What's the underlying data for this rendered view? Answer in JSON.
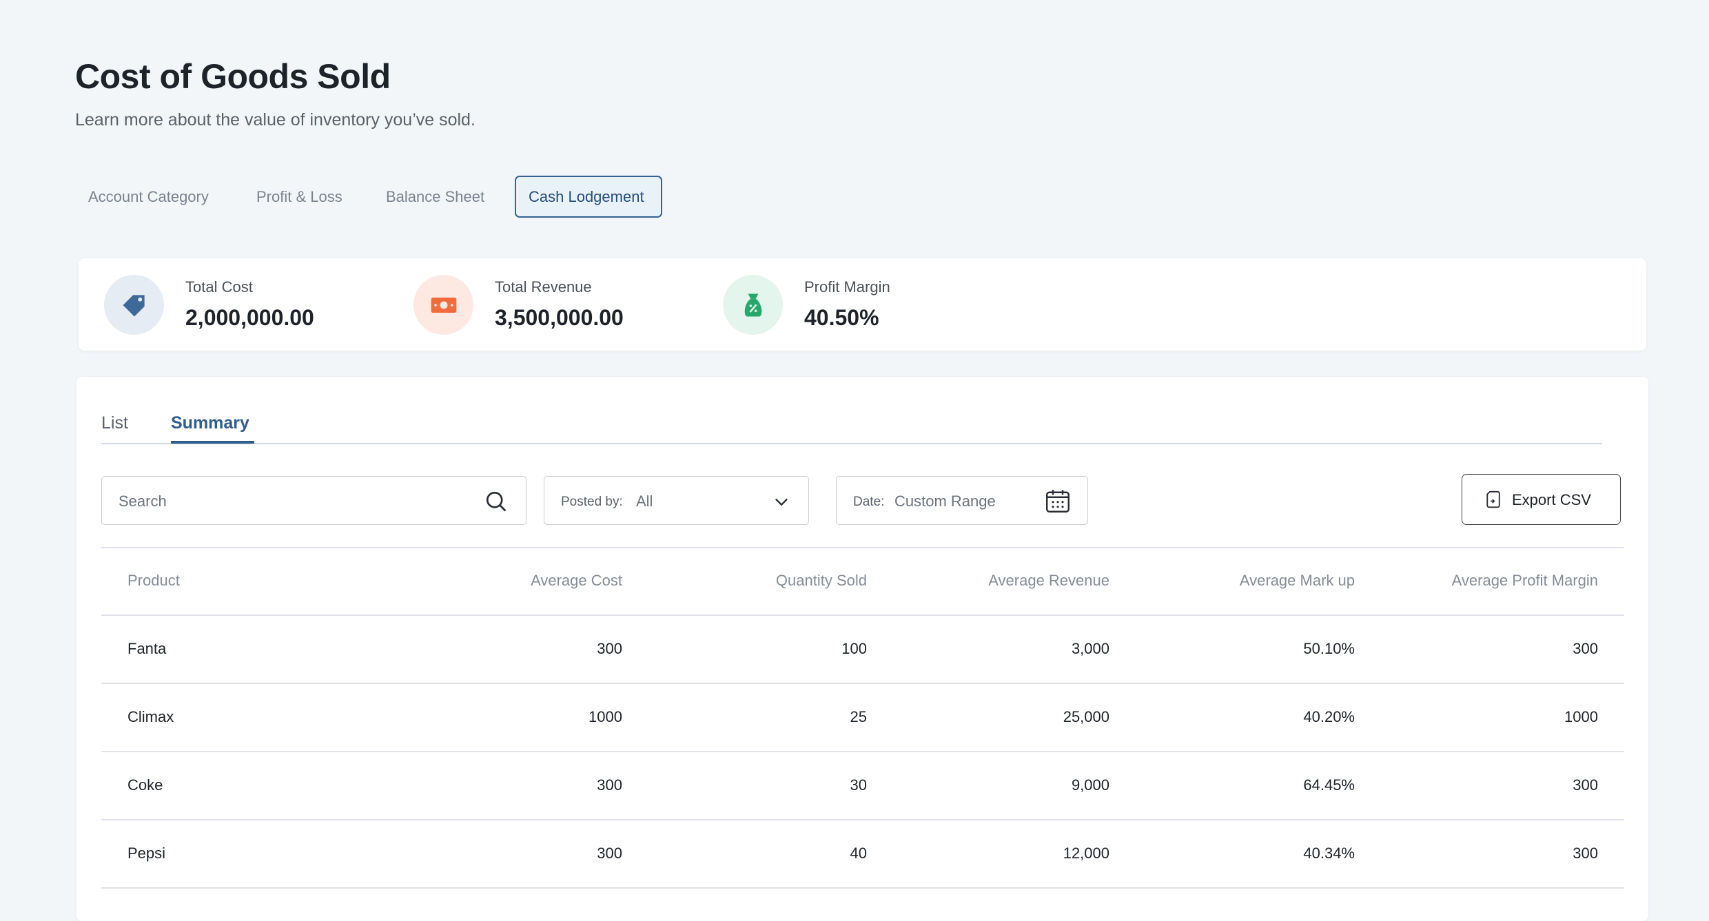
{
  "header": {
    "title": "Cost of Goods Sold",
    "subtitle": "Learn more about the value of inventory you’ve sold."
  },
  "nav_tabs": [
    "Account Category",
    "Profit & Loss",
    "Balance Sheet",
    "Cash Lodgement"
  ],
  "stats": [
    {
      "label": "Total Cost",
      "value": "2,000,000.00"
    },
    {
      "label": "Total Revenue",
      "value": "3,500,000.00"
    },
    {
      "label": "Profit Margin",
      "value": "40.50%"
    }
  ],
  "view_tabs": [
    "List",
    "Summary"
  ],
  "filters": {
    "search_placeholder": "Search",
    "posted_by_label": "Posted by:",
    "posted_by_value": "All",
    "date_label": "Date:",
    "date_value": "Custom Range",
    "export": "Export CSV"
  },
  "table": {
    "columns": [
      "Product",
      "Average Cost",
      "Quantity Sold",
      "Average Revenue",
      "Average Mark up",
      "Average Profit Margin"
    ],
    "rows": [
      [
        "Fanta",
        "300",
        "100",
        "3,000",
        "50.10%",
        "300"
      ],
      [
        "Climax",
        "1000",
        "25",
        "25,000",
        "40.20%",
        "1000"
      ],
      [
        "Coke",
        "300",
        "30",
        "9,000",
        "64.45%",
        "300"
      ],
      [
        "Pepsi",
        "300",
        "40",
        "12,000",
        "40.34%",
        "300"
      ]
    ]
  }
}
